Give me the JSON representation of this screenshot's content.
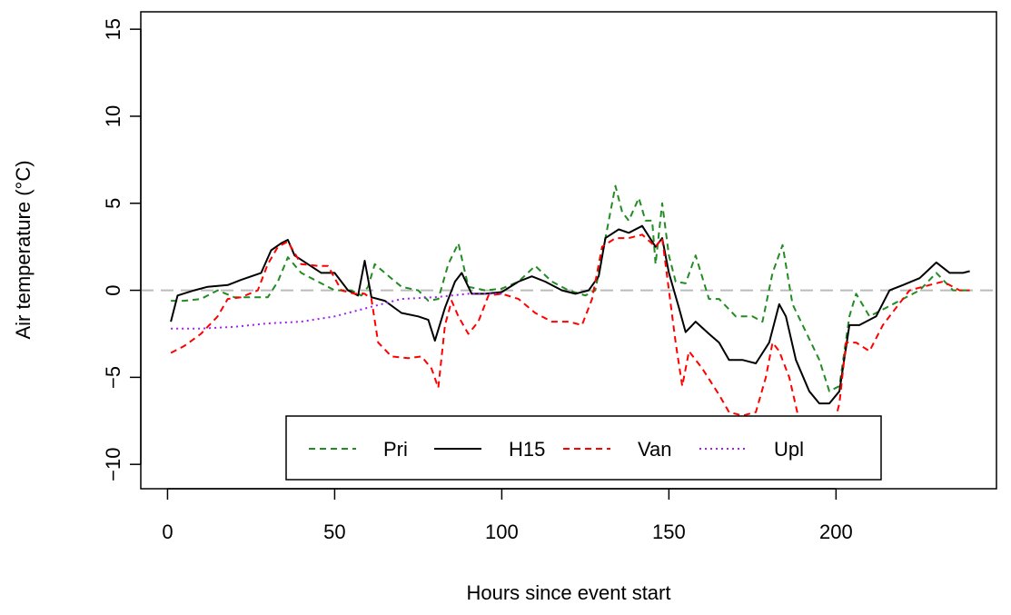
{
  "chart_data": {
    "type": "line",
    "xlabel": "Hours since event start",
    "ylabel": "Air temperature (°C)",
    "xlim": [
      -8,
      248
    ],
    "ylim": [
      -11.4,
      16
    ],
    "x_ticks": [
      0,
      50,
      100,
      150,
      200
    ],
    "y_ticks": [
      -10,
      -5,
      0,
      5,
      10,
      15
    ],
    "reference_line": {
      "y": 0,
      "color": "#bbbbbb",
      "style": "dashed"
    },
    "legend_position": "bottom-center",
    "series": [
      {
        "name": "Pri",
        "color": "#228B22",
        "dash": "dashed",
        "points": [
          [
            1,
            -0.6
          ],
          [
            5,
            -0.6
          ],
          [
            10,
            -0.5
          ],
          [
            15,
            0
          ],
          [
            20,
            -0.4
          ],
          [
            25,
            -0.4
          ],
          [
            30,
            -0.4
          ],
          [
            33,
            0.5
          ],
          [
            36,
            1.9
          ],
          [
            40,
            1
          ],
          [
            45,
            0.5
          ],
          [
            50,
            0
          ],
          [
            55,
            0
          ],
          [
            58,
            -0.3
          ],
          [
            60,
            0.2
          ],
          [
            62,
            1.5
          ],
          [
            65,
            1
          ],
          [
            70,
            0.2
          ],
          [
            75,
            0
          ],
          [
            78,
            -0.6
          ],
          [
            81,
            -0.5
          ],
          [
            84,
            1.5
          ],
          [
            87,
            2.7
          ],
          [
            90,
            0.2
          ],
          [
            95,
            0
          ],
          [
            100,
            0.1
          ],
          [
            105,
            0.5
          ],
          [
            110,
            1.4
          ],
          [
            115,
            0.5
          ],
          [
            120,
            0
          ],
          [
            125,
            -0.3
          ],
          [
            128,
            0
          ],
          [
            131,
            3
          ],
          [
            134,
            6
          ],
          [
            136,
            4.5
          ],
          [
            138,
            4
          ],
          [
            141,
            5.3
          ],
          [
            143,
            4
          ],
          [
            145,
            4
          ],
          [
            146,
            1.5
          ],
          [
            148,
            5
          ],
          [
            150,
            2
          ],
          [
            152,
            0.5
          ],
          [
            155,
            0.4
          ],
          [
            158,
            2
          ],
          [
            162,
            -0.5
          ],
          [
            165,
            -0.5
          ],
          [
            170,
            -1.5
          ],
          [
            175,
            -1.5
          ],
          [
            178,
            -1.8
          ],
          [
            181,
            1
          ],
          [
            184,
            2.6
          ],
          [
            187,
            -0.8
          ],
          [
            190,
            -2
          ],
          [
            195,
            -4
          ],
          [
            198,
            -5.8
          ],
          [
            201,
            -5.5
          ],
          [
            204,
            -1.5
          ],
          [
            206,
            -0.2
          ],
          [
            210,
            -1.5
          ],
          [
            215,
            -1
          ],
          [
            220,
            -0.5
          ],
          [
            225,
            0
          ],
          [
            230,
            1
          ],
          [
            235,
            0
          ],
          [
            240,
            0
          ]
        ]
      },
      {
        "name": "H15",
        "color": "#000000",
        "dash": "solid",
        "points": [
          [
            1,
            -1.8
          ],
          [
            3,
            -0.3
          ],
          [
            8,
            0
          ],
          [
            12,
            0.2
          ],
          [
            18,
            0.3
          ],
          [
            22,
            0.6
          ],
          [
            28,
            1
          ],
          [
            31,
            2.3
          ],
          [
            34,
            2.7
          ],
          [
            36,
            2.9
          ],
          [
            38,
            2
          ],
          [
            42,
            1.5
          ],
          [
            46,
            1
          ],
          [
            50,
            1
          ],
          [
            54,
            0
          ],
          [
            57,
            -0.3
          ],
          [
            59,
            1.7
          ],
          [
            61,
            -0.4
          ],
          [
            65,
            -0.6
          ],
          [
            70,
            -1.3
          ],
          [
            75,
            -1.5
          ],
          [
            78,
            -1.7
          ],
          [
            80,
            -2.9
          ],
          [
            83,
            -1
          ],
          [
            86,
            0.5
          ],
          [
            88,
            1
          ],
          [
            91,
            -0.2
          ],
          [
            95,
            -0.2
          ],
          [
            100,
            -0.1
          ],
          [
            105,
            0.5
          ],
          [
            109,
            0.8
          ],
          [
            113,
            0.5
          ],
          [
            118,
            0
          ],
          [
            122,
            -0.2
          ],
          [
            126,
            0
          ],
          [
            129,
            0.8
          ],
          [
            131,
            3
          ],
          [
            135,
            3.5
          ],
          [
            138,
            3.3
          ],
          [
            142,
            3.7
          ],
          [
            146,
            2.5
          ],
          [
            148,
            3
          ],
          [
            150,
            1
          ],
          [
            153,
            -1
          ],
          [
            155,
            -2.4
          ],
          [
            158,
            -1.8
          ],
          [
            162,
            -2.5
          ],
          [
            165,
            -3
          ],
          [
            168,
            -4
          ],
          [
            172,
            -4
          ],
          [
            176,
            -4.2
          ],
          [
            180,
            -3
          ],
          [
            183,
            -0.8
          ],
          [
            185,
            -1.5
          ],
          [
            188,
            -4
          ],
          [
            192,
            -5.8
          ],
          [
            195,
            -6.5
          ],
          [
            198,
            -6.5
          ],
          [
            201,
            -5.8
          ],
          [
            204,
            -2
          ],
          [
            207,
            -2
          ],
          [
            212,
            -1.5
          ],
          [
            216,
            0
          ],
          [
            220,
            0.3
          ],
          [
            225,
            0.7
          ],
          [
            230,
            1.6
          ],
          [
            234,
            1
          ],
          [
            238,
            1
          ],
          [
            240,
            1.1
          ]
        ]
      },
      {
        "name": "Van",
        "color": "#FF0000",
        "dash": "dashed",
        "points": [
          [
            1,
            -3.6
          ],
          [
            5,
            -3.2
          ],
          [
            10,
            -2.5
          ],
          [
            15,
            -1.5
          ],
          [
            18,
            -0.5
          ],
          [
            22,
            -0.4
          ],
          [
            27,
            0
          ],
          [
            30,
            1.5
          ],
          [
            33,
            2.5
          ],
          [
            36,
            2.8
          ],
          [
            40,
            1.5
          ],
          [
            45,
            1.4
          ],
          [
            48,
            1.4
          ],
          [
            52,
            0
          ],
          [
            56,
            -0.2
          ],
          [
            59,
            -0.2
          ],
          [
            61,
            -0.5
          ],
          [
            63,
            -3
          ],
          [
            67,
            -3.8
          ],
          [
            72,
            -3.9
          ],
          [
            76,
            -3.8
          ],
          [
            79,
            -4.5
          ],
          [
            81,
            -5.6
          ],
          [
            83,
            -2
          ],
          [
            85,
            -0.6
          ],
          [
            87,
            -1.5
          ],
          [
            90,
            -2.5
          ],
          [
            93,
            -1.8
          ],
          [
            96,
            -0.3
          ],
          [
            100,
            -0.2
          ],
          [
            105,
            -0.5
          ],
          [
            110,
            -1.3
          ],
          [
            115,
            -1.8
          ],
          [
            120,
            -1.8
          ],
          [
            124,
            -2
          ],
          [
            127,
            -0.5
          ],
          [
            130,
            2.5
          ],
          [
            134,
            3
          ],
          [
            138,
            3
          ],
          [
            142,
            3.2
          ],
          [
            146,
            2.5
          ],
          [
            148,
            3
          ],
          [
            150,
            0
          ],
          [
            152,
            -3
          ],
          [
            154,
            -5.5
          ],
          [
            156,
            -3.5
          ],
          [
            160,
            -4.5
          ],
          [
            165,
            -6
          ],
          [
            168,
            -7
          ],
          [
            172,
            -7.2
          ],
          [
            176,
            -7
          ],
          [
            179,
            -5
          ],
          [
            181,
            -3
          ],
          [
            183,
            -3.5
          ],
          [
            186,
            -5
          ],
          [
            189,
            -7.5
          ],
          [
            193,
            -8
          ],
          [
            196,
            -8.5
          ],
          [
            199,
            -8
          ],
          [
            201,
            -6.5
          ],
          [
            203,
            -3
          ],
          [
            206,
            -3
          ],
          [
            210,
            -3.5
          ],
          [
            214,
            -2
          ],
          [
            218,
            -1
          ],
          [
            222,
            0
          ],
          [
            226,
            0.2
          ],
          [
            232,
            0.5
          ],
          [
            237,
            0
          ],
          [
            240,
            0
          ]
        ]
      },
      {
        "name": "Upl",
        "color": "#A020F0",
        "dash": "dotted",
        "points": [
          [
            1,
            -2.2
          ],
          [
            10,
            -2.2
          ],
          [
            20,
            -2.1
          ],
          [
            30,
            -1.9
          ],
          [
            40,
            -1.8
          ],
          [
            50,
            -1.5
          ],
          [
            60,
            -1
          ],
          [
            70,
            -0.5
          ],
          [
            80,
            -0.4
          ],
          [
            90,
            -0.2
          ],
          [
            100,
            -0.2
          ]
        ]
      }
    ]
  }
}
